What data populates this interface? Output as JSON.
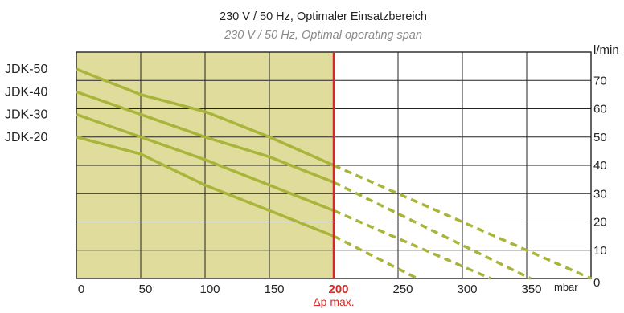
{
  "chart_data": {
    "type": "line",
    "title": "230 V / 50 Hz, Optimaler Einsatzbereich",
    "subtitle": "230 V / 50 Hz, Optimal operating span",
    "xlabel": "mbar",
    "ylabel": "l/min",
    "xlim": [
      0,
      400
    ],
    "ylim": [
      0,
      80
    ],
    "x_ticks": [
      "0",
      "50",
      "100",
      "150",
      "200",
      "250",
      "300",
      "350"
    ],
    "y_ticks": [
      "0",
      "10",
      "20",
      "30",
      "40",
      "50",
      "60",
      "70"
    ],
    "grid": true,
    "optimal_region": {
      "x_from": 0,
      "x_to": 200,
      "color": "#e0dc9c"
    },
    "max_pressure_line": {
      "x": 200,
      "tick_label": "200",
      "label": "Δp max.",
      "color": "#d62a2a"
    },
    "series_color": "#a9b53a",
    "series": [
      {
        "name": "JDK-50",
        "solid": [
          [
            0,
            74
          ],
          [
            50,
            65
          ],
          [
            100,
            59
          ],
          [
            150,
            50
          ],
          [
            200,
            40
          ]
        ],
        "dashed": [
          [
            200,
            40
          ],
          [
            400,
            0
          ]
        ]
      },
      {
        "name": "JDK-40",
        "solid": [
          [
            0,
            66
          ],
          [
            50,
            58
          ],
          [
            100,
            50
          ],
          [
            150,
            43
          ],
          [
            200,
            34
          ]
        ],
        "dashed": [
          [
            200,
            34
          ],
          [
            353,
            0
          ]
        ]
      },
      {
        "name": "JDK-30",
        "solid": [
          [
            0,
            58
          ],
          [
            50,
            50
          ],
          [
            100,
            42
          ],
          [
            150,
            33
          ],
          [
            200,
            24
          ]
        ],
        "dashed": [
          [
            200,
            24
          ],
          [
            322,
            0
          ]
        ]
      },
      {
        "name": "JDK-20",
        "solid": [
          [
            0,
            50
          ],
          [
            50,
            44
          ],
          [
            100,
            33
          ],
          [
            150,
            24
          ],
          [
            200,
            15
          ]
        ],
        "dashed": [
          [
            200,
            15
          ],
          [
            265,
            0
          ]
        ]
      }
    ]
  }
}
